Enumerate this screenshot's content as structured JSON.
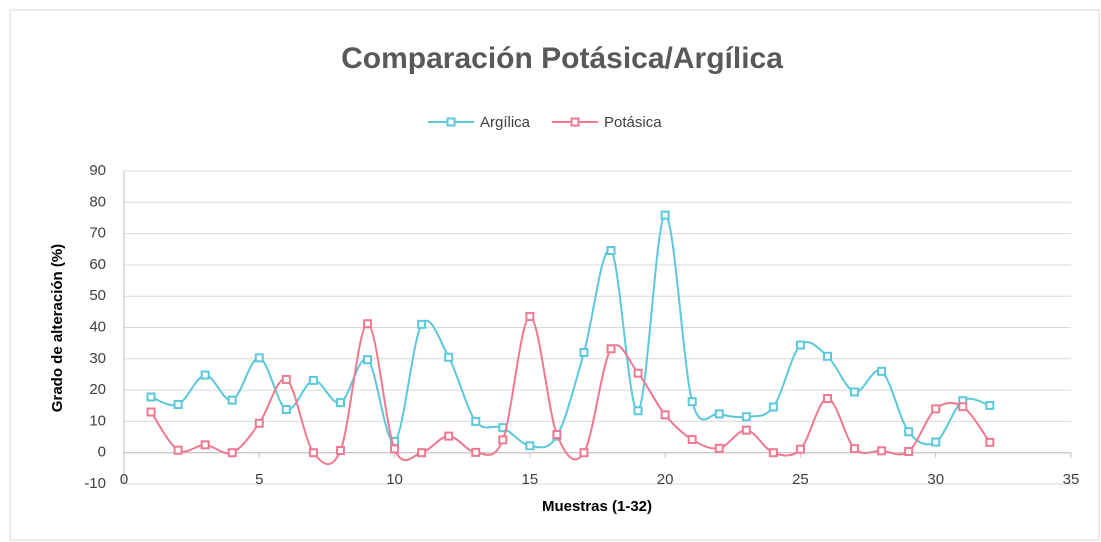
{
  "chart_data": {
    "type": "line",
    "title": "Comparación Potásica/Argílica",
    "xlabel": "Muestras (1-32)",
    "ylabel": "Grado de alteración (%)",
    "x": [
      1,
      2,
      3,
      4,
      5,
      6,
      7,
      8,
      9,
      10,
      11,
      12,
      13,
      14,
      15,
      16,
      17,
      18,
      19,
      20,
      21,
      22,
      23,
      24,
      25,
      26,
      27,
      28,
      29,
      30,
      31,
      32
    ],
    "series": [
      {
        "name": "Argílica",
        "color": "#5bc8dc",
        "values": [
          17.8,
          15.4,
          24.8,
          16.8,
          30.3,
          13.8,
          23.1,
          16,
          29.7,
          3.6,
          41,
          30.5,
          10,
          8,
          2.2,
          5.3,
          32,
          64.6,
          13.4,
          75.9,
          16.3,
          12.4,
          11.5,
          14.6,
          34.4,
          30.8,
          19.4,
          26,
          6.7,
          3.4,
          16.6,
          15.1
        ]
      },
      {
        "name": "Potásica",
        "color": "#f07890",
        "values": [
          13,
          0.8,
          2.5,
          0,
          9.4,
          23.4,
          0,
          0.7,
          41.2,
          1.2,
          0,
          5.3,
          0.1,
          4.1,
          43.5,
          5.8,
          0,
          33.2,
          25.4,
          12.1,
          4.2,
          1.4,
          7.2,
          0,
          1.1,
          17.3,
          1.3,
          0.6,
          0.4,
          14,
          14.7,
          3.3
        ]
      }
    ],
    "xlim": [
      0,
      35
    ],
    "xticks": [
      0,
      5,
      10,
      15,
      20,
      25,
      30,
      35
    ],
    "ylim": [
      -10,
      90
    ],
    "yticks": [
      -10,
      0,
      10,
      20,
      30,
      40,
      50,
      60,
      70,
      80,
      90
    ],
    "grid": true,
    "legend": "top",
    "smooth": true
  }
}
